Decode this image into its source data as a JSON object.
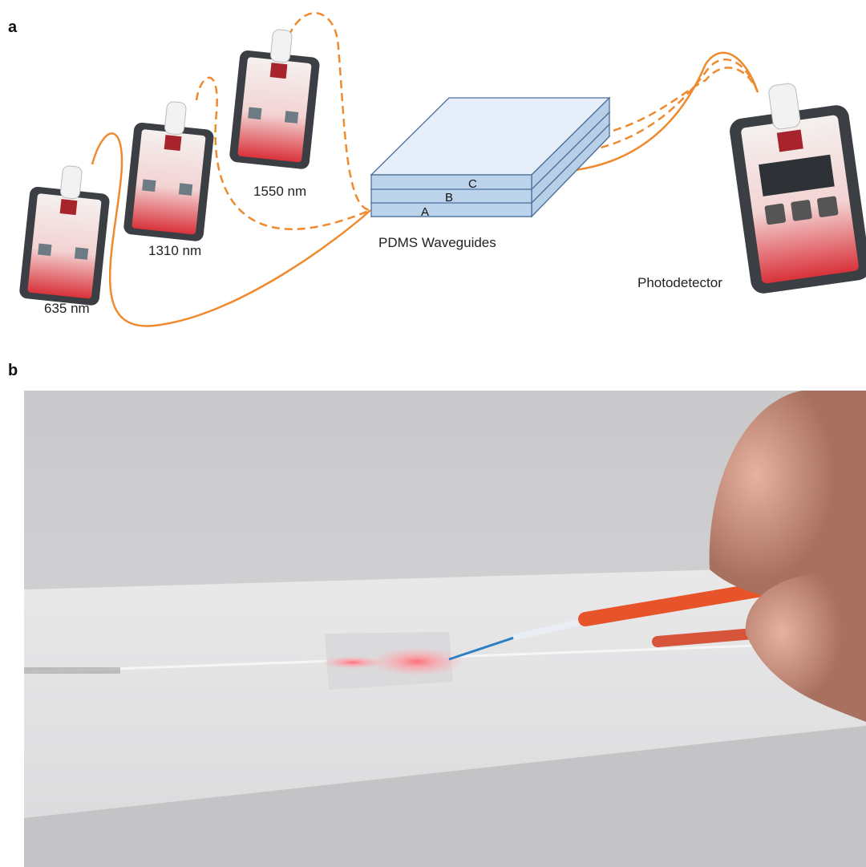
{
  "panel_a": {
    "label": "a",
    "sources": [
      {
        "label": "635 nm"
      },
      {
        "label": "1310 nm"
      },
      {
        "label": "1550 nm"
      }
    ],
    "waveguide": {
      "label": "PDMS Waveguides",
      "layers": [
        "A",
        "B",
        "C"
      ]
    },
    "detector": {
      "label": "Photodetector"
    }
  },
  "panel_b": {
    "label": "b"
  }
}
